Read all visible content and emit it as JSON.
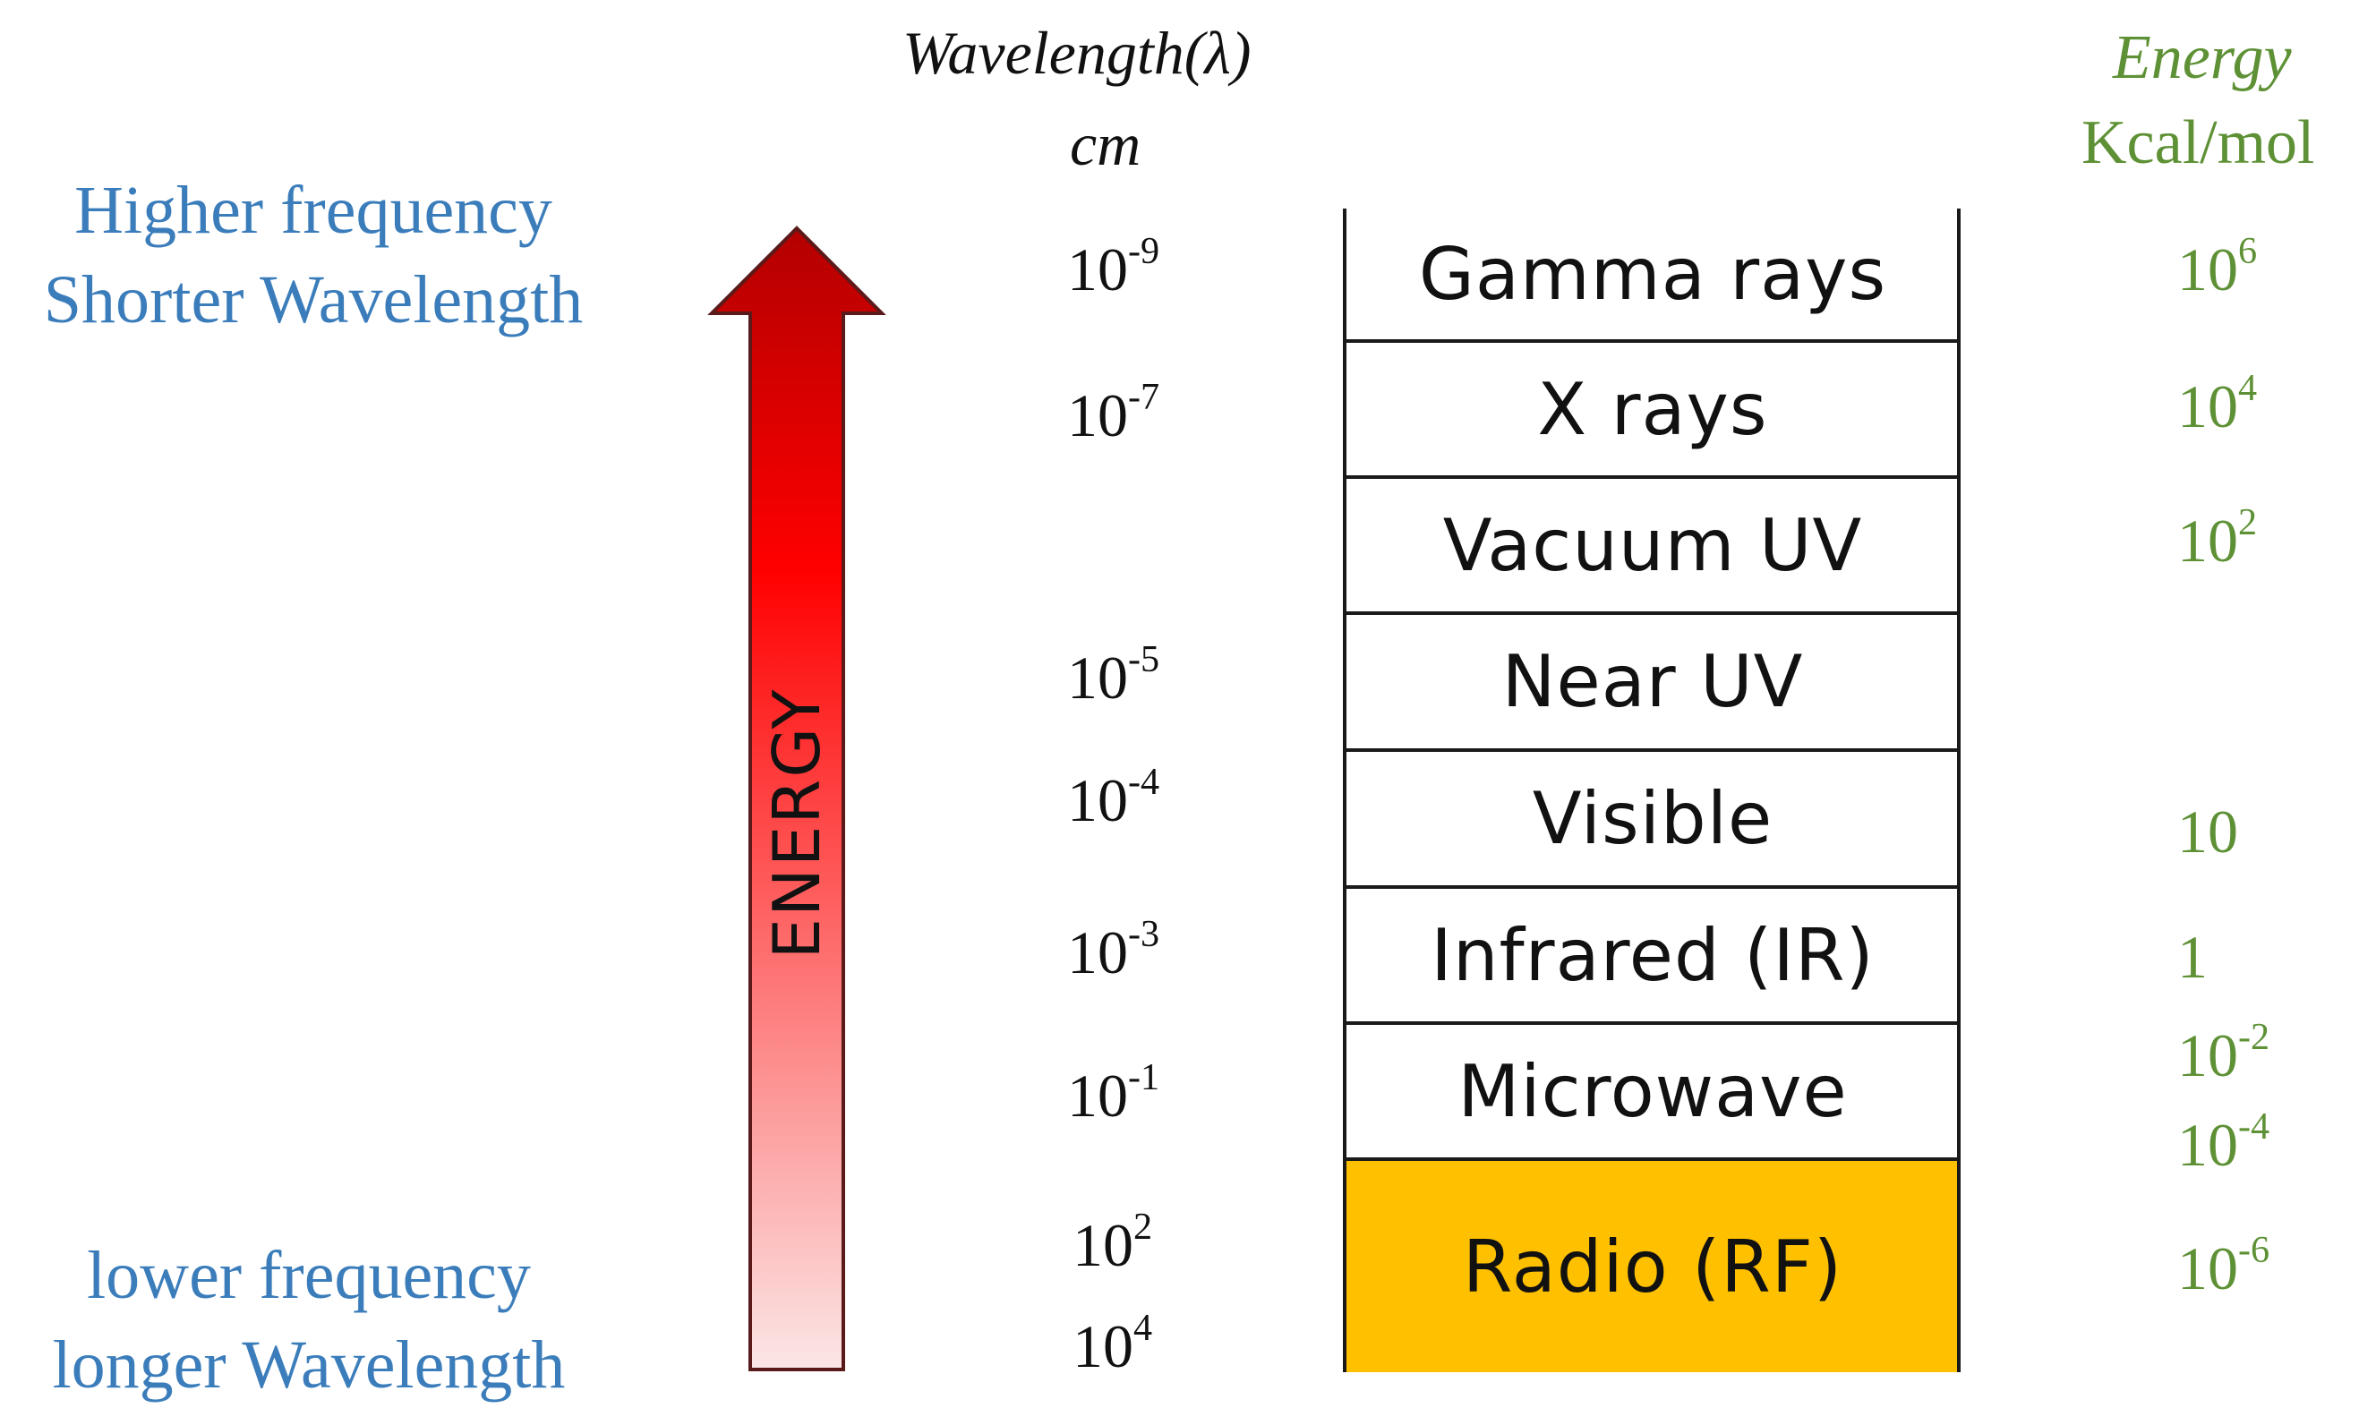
{
  "left_labels": {
    "top_line1": "Higher frequency",
    "top_line2": "Shorter Wavelength",
    "bottom_line1": "lower frequency",
    "bottom_line2": "longer Wavelength"
  },
  "arrow": {
    "label": "ENERGY",
    "gradient_top": "#b30000",
    "gradient_mid": "#ff0000",
    "gradient_bottom": "#fce6e6"
  },
  "wavelength_header": {
    "title": "Wavelength(λ)",
    "unit": "cm"
  },
  "energy_header": {
    "title": "Energy",
    "unit": "Kcal/mol"
  },
  "wavelength_ticks": [
    {
      "base": "10",
      "exp": "-9"
    },
    {
      "base": "10",
      "exp": "-7"
    },
    {
      "base": "10",
      "exp": "-5"
    },
    {
      "base": "10",
      "exp": "-4"
    },
    {
      "base": "10",
      "exp": "-3"
    },
    {
      "base": "10",
      "exp": "-1"
    },
    {
      "base": "10",
      "exp": "2"
    },
    {
      "base": "10",
      "exp": "4"
    }
  ],
  "bands": [
    {
      "label": "Gamma rays"
    },
    {
      "label": "X rays"
    },
    {
      "label": "Vacuum UV"
    },
    {
      "label": "Near UV"
    },
    {
      "label": "Visible"
    },
    {
      "label": "Infrared (IR)"
    },
    {
      "label": "Microwave"
    },
    {
      "label": "Radio (RF)"
    }
  ],
  "highlight_color": "#ffc000",
  "energy_ticks": [
    {
      "base": "10",
      "exp": "6"
    },
    {
      "base": "10",
      "exp": "4"
    },
    {
      "base": "10",
      "exp": "2"
    },
    {
      "base": "10",
      "exp": ""
    },
    {
      "base": "1",
      "exp": ""
    },
    {
      "base": "10",
      "exp": "-2"
    },
    {
      "base": "10",
      "exp": "-4"
    },
    {
      "base": "10",
      "exp": "-6"
    }
  ]
}
